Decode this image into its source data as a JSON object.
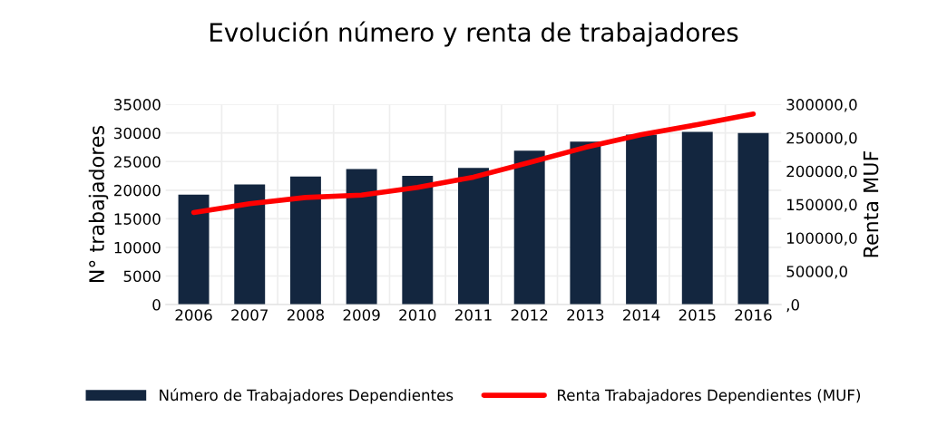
{
  "chart_data": {
    "type": "bar",
    "title": "Evolución número y renta de trabajadores",
    "ylabel": "N° trabajadores",
    "y2label": "Renta MUF",
    "categories": [
      "2006",
      "2007",
      "2008",
      "2009",
      "2010",
      "2011",
      "2012",
      "2013",
      "2014",
      "2015",
      "2016"
    ],
    "series": [
      {
        "name": "Número de Trabajadores Dependientes",
        "color": "#13263f",
        "values": [
          19200,
          21000,
          22400,
          23700,
          22500,
          23900,
          26900,
          28500,
          29700,
          30200,
          30000
        ]
      },
      {
        "name": "Renta Trabajadores Dependientes (MUF)",
        "type": "line",
        "axis": "y2",
        "color": "#ff0000",
        "line_style": "solid",
        "marker": "none",
        "values": [
          138000,
          151000,
          160500,
          164000,
          175500,
          191000,
          213000,
          235600,
          254700,
          269700,
          285500
        ]
      }
    ],
    "ylim": [
      0,
      35000
    ],
    "yticks": [
      0,
      5000,
      10000,
      15000,
      20000,
      25000,
      30000,
      35000
    ],
    "y2lim": [
      0,
      300000
    ],
    "y2ticks": [
      {
        "value": 0,
        "label": ",0"
      },
      {
        "value": 50000,
        "label": "50000,0"
      },
      {
        "value": 100000,
        "label": "100000,0"
      },
      {
        "value": 150000,
        "label": "150000,0"
      },
      {
        "value": 200000,
        "label": "200000,0"
      },
      {
        "value": 250000,
        "label": "250000,0"
      },
      {
        "value": 300000,
        "label": "300000,0"
      }
    ],
    "grid": true,
    "legend": "bottom"
  }
}
